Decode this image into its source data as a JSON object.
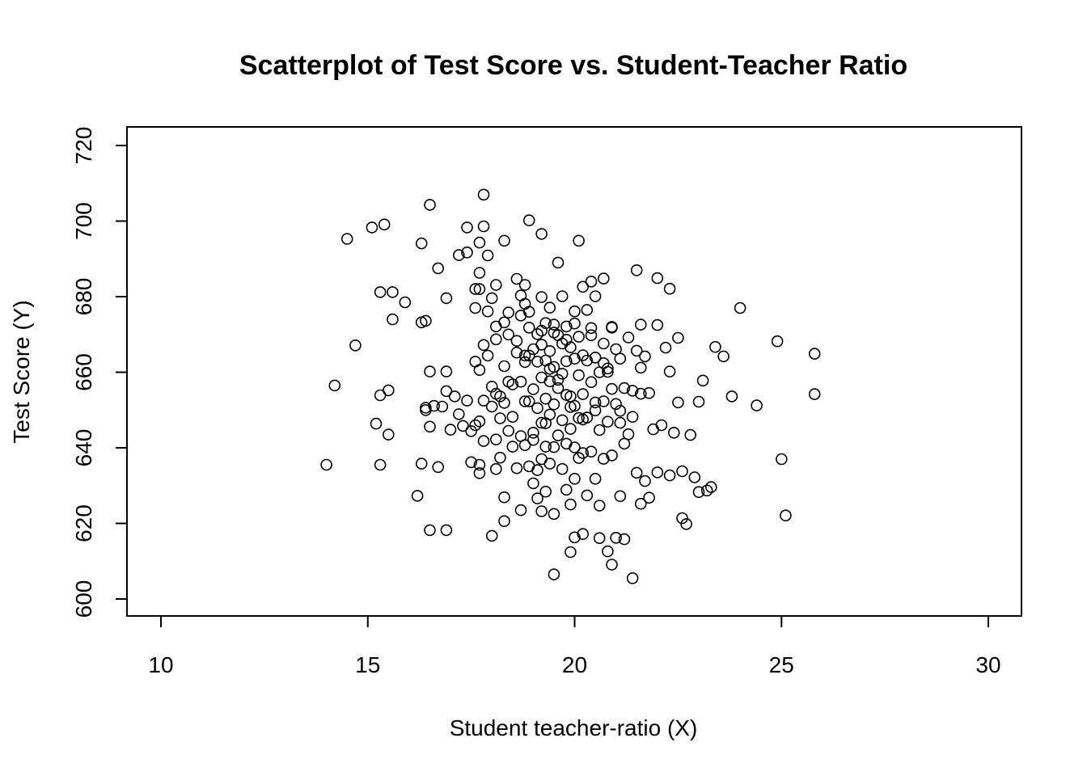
{
  "chart_data": {
    "type": "scatter",
    "title": "Scatterplot of Test Score vs. Student-Teacher Ratio",
    "xlabel": "Student teacher-ratio (X)",
    "ylabel": "Test Score (Y)",
    "xlim": [
      10,
      30
    ],
    "ylim": [
      600,
      720
    ],
    "xticks": [
      10,
      15,
      20,
      25,
      30
    ],
    "yticks": [
      600,
      620,
      640,
      660,
      680,
      700,
      720
    ],
    "xtick_labels": [
      "10",
      "15",
      "20",
      "25",
      "30"
    ],
    "ytick_labels": [
      "600",
      "620",
      "640",
      "660",
      "680",
      "700",
      "720"
    ],
    "grid": false,
    "marker": "open-circle",
    "color": "#000000",
    "points": [
      [
        14.0,
        635.5
      ],
      [
        14.2,
        656.5
      ],
      [
        14.5,
        695.3
      ],
      [
        14.7,
        667.1
      ],
      [
        15.1,
        698.3
      ],
      [
        15.2,
        646.4
      ],
      [
        15.3,
        653.9
      ],
      [
        15.3,
        681.2
      ],
      [
        15.3,
        635.5
      ],
      [
        15.4,
        699.1
      ],
      [
        15.5,
        643.5
      ],
      [
        15.5,
        655.2
      ],
      [
        15.6,
        681.2
      ],
      [
        15.6,
        674.0
      ],
      [
        15.9,
        678.5
      ],
      [
        16.2,
        627.3
      ],
      [
        16.3,
        694.1
      ],
      [
        16.3,
        673.2
      ],
      [
        16.3,
        635.8
      ],
      [
        16.4,
        673.6
      ],
      [
        16.4,
        650.6
      ],
      [
        16.4,
        650.0
      ],
      [
        16.5,
        704.3
      ],
      [
        16.5,
        660.2
      ],
      [
        16.5,
        618.2
      ],
      [
        16.5,
        645.6
      ],
      [
        16.6,
        651.1
      ],
      [
        16.7,
        687.5
      ],
      [
        16.7,
        634.9
      ],
      [
        16.8,
        650.9
      ],
      [
        16.9,
        679.6
      ],
      [
        16.9,
        660.2
      ],
      [
        16.9,
        655.0
      ],
      [
        16.9,
        618.2
      ],
      [
        17.0,
        644.8
      ],
      [
        17.1,
        653.6
      ],
      [
        17.2,
        691.0
      ],
      [
        17.2,
        648.9
      ],
      [
        17.3,
        645.8
      ],
      [
        17.4,
        698.3
      ],
      [
        17.4,
        691.7
      ],
      [
        17.4,
        652.5
      ],
      [
        17.5,
        644.4
      ],
      [
        17.5,
        636.2
      ],
      [
        17.6,
        646.0
      ],
      [
        17.6,
        682.0
      ],
      [
        17.6,
        677.0
      ],
      [
        17.6,
        662.8
      ],
      [
        17.7,
        694.3
      ],
      [
        17.7,
        686.3
      ],
      [
        17.7,
        682.0
      ],
      [
        17.7,
        660.6
      ],
      [
        17.7,
        647.0
      ],
      [
        17.7,
        633.3
      ],
      [
        17.7,
        635.5
      ],
      [
        17.8,
        707.0
      ],
      [
        17.8,
        698.6
      ],
      [
        17.8,
        667.2
      ],
      [
        17.8,
        652.5
      ],
      [
        17.8,
        641.8
      ],
      [
        17.9,
        690.9
      ],
      [
        17.9,
        676.1
      ],
      [
        17.9,
        664.4
      ],
      [
        18.0,
        679.6
      ],
      [
        18.0,
        656.2
      ],
      [
        18.0,
        616.7
      ],
      [
        18.0,
        650.9
      ],
      [
        18.1,
        683.1
      ],
      [
        18.1,
        672.1
      ],
      [
        18.1,
        668.7
      ],
      [
        18.1,
        654.3
      ],
      [
        18.1,
        642.2
      ],
      [
        18.1,
        634.4
      ],
      [
        18.2,
        653.6
      ],
      [
        18.2,
        647.8
      ],
      [
        18.2,
        637.4
      ],
      [
        18.3,
        694.8
      ],
      [
        18.3,
        673.2
      ],
      [
        18.3,
        661.6
      ],
      [
        18.3,
        651.9
      ],
      [
        18.3,
        626.9
      ],
      [
        18.3,
        620.6
      ],
      [
        18.4,
        675.8
      ],
      [
        18.4,
        670.0
      ],
      [
        18.4,
        657.5
      ],
      [
        18.4,
        644.5
      ],
      [
        18.5,
        640.3
      ],
      [
        18.5,
        656.8
      ],
      [
        18.6,
        684.7
      ],
      [
        18.6,
        668.3
      ],
      [
        18.6,
        665.2
      ],
      [
        18.6,
        634.6
      ],
      [
        18.7,
        680.3
      ],
      [
        18.7,
        675.0
      ],
      [
        18.7,
        657.5
      ],
      [
        18.7,
        643.1
      ],
      [
        18.7,
        623.5
      ],
      [
        18.8,
        683.1
      ],
      [
        18.8,
        678.1
      ],
      [
        18.8,
        662.7
      ],
      [
        18.8,
        664.4
      ],
      [
        18.8,
        652.3
      ],
      [
        18.8,
        640.7
      ],
      [
        18.9,
        700.2
      ],
      [
        18.9,
        676.0
      ],
      [
        18.9,
        664.4
      ],
      [
        18.9,
        652.3
      ],
      [
        18.9,
        635.1
      ],
      [
        19.0,
        666.1
      ],
      [
        19.0,
        655.5
      ],
      [
        19.0,
        642.1
      ],
      [
        19.0,
        630.6
      ],
      [
        19.1,
        670.1
      ],
      [
        19.1,
        662.8
      ],
      [
        19.1,
        650.5
      ],
      [
        19.1,
        634.1
      ],
      [
        19.1,
        626.6
      ],
      [
        19.2,
        696.6
      ],
      [
        19.2,
        679.9
      ],
      [
        19.2,
        671.0
      ],
      [
        19.2,
        658.6
      ],
      [
        19.2,
        646.6
      ],
      [
        19.2,
        637.0
      ],
      [
        19.2,
        623.2
      ],
      [
        19.3,
        673.0
      ],
      [
        19.3,
        663.1
      ],
      [
        19.3,
        653.0
      ],
      [
        19.3,
        640.3
      ],
      [
        19.3,
        628.4
      ],
      [
        19.4,
        677.1
      ],
      [
        19.4,
        665.6
      ],
      [
        19.4,
        660.9
      ],
      [
        19.4,
        648.8
      ],
      [
        19.4,
        635.8
      ],
      [
        19.5,
        606.5
      ],
      [
        19.5,
        672.6
      ],
      [
        19.5,
        661.4
      ],
      [
        19.5,
        651.5
      ],
      [
        19.5,
        640.2
      ],
      [
        19.5,
        622.5
      ],
      [
        19.6,
        689.0
      ],
      [
        19.6,
        669.8
      ],
      [
        19.6,
        655.8
      ],
      [
        19.6,
        643.3
      ],
      [
        19.7,
        680.1
      ],
      [
        19.7,
        667.6
      ],
      [
        19.7,
        659.6
      ],
      [
        19.7,
        647.3
      ],
      [
        19.7,
        634.4
      ],
      [
        19.8,
        672.1
      ],
      [
        19.8,
        662.9
      ],
      [
        19.8,
        654.0
      ],
      [
        19.8,
        641.1
      ],
      [
        19.8,
        628.9
      ],
      [
        19.9,
        666.6
      ],
      [
        19.9,
        653.6
      ],
      [
        19.9,
        645.0
      ],
      [
        19.9,
        625.0
      ],
      [
        19.9,
        612.4
      ],
      [
        20.0,
        676.1
      ],
      [
        20.0,
        663.6
      ],
      [
        20.0,
        651.1
      ],
      [
        20.0,
        640.1
      ],
      [
        20.0,
        631.8
      ],
      [
        20.0,
        616.3
      ],
      [
        20.1,
        694.8
      ],
      [
        20.1,
        669.4
      ],
      [
        20.1,
        659.2
      ],
      [
        20.1,
        647.9
      ],
      [
        20.1,
        637.3
      ],
      [
        20.2,
        682.6
      ],
      [
        20.2,
        664.5
      ],
      [
        20.2,
        654.2
      ],
      [
        20.2,
        638.6
      ],
      [
        20.2,
        617.2
      ],
      [
        20.3,
        676.5
      ],
      [
        20.3,
        663.1
      ],
      [
        20.3,
        648.0
      ],
      [
        20.3,
        627.4
      ],
      [
        20.4,
        684.0
      ],
      [
        20.4,
        671.7
      ],
      [
        20.4,
        657.4
      ],
      [
        20.4,
        639.0
      ],
      [
        20.5,
        680.1
      ],
      [
        20.5,
        663.9
      ],
      [
        20.5,
        649.9
      ],
      [
        20.5,
        631.8
      ],
      [
        20.6,
        660.0
      ],
      [
        20.6,
        644.7
      ],
      [
        20.6,
        624.7
      ],
      [
        20.6,
        616.1
      ],
      [
        20.7,
        684.8
      ],
      [
        20.7,
        667.6
      ],
      [
        20.7,
        652.3
      ],
      [
        20.7,
        637.1
      ],
      [
        20.8,
        612.6
      ],
      [
        20.8,
        660.1
      ],
      [
        20.8,
        646.9
      ],
      [
        20.9,
        671.8
      ],
      [
        20.9,
        655.6
      ],
      [
        20.9,
        638.0
      ],
      [
        20.9,
        609.1
      ],
      [
        21.0,
        666.1
      ],
      [
        21.0,
        651.6
      ],
      [
        21.0,
        616.2
      ],
      [
        21.1,
        663.6
      ],
      [
        21.1,
        646.6
      ],
      [
        21.1,
        627.2
      ],
      [
        21.2,
        655.8
      ],
      [
        21.2,
        641.1
      ],
      [
        21.2,
        615.8
      ],
      [
        21.3,
        669.2
      ],
      [
        21.3,
        643.6
      ],
      [
        21.4,
        648.2
      ],
      [
        21.4,
        605.5
      ],
      [
        21.5,
        687.0
      ],
      [
        21.5,
        665.7
      ],
      [
        21.5,
        633.4
      ],
      [
        21.6,
        672.6
      ],
      [
        21.6,
        654.3
      ],
      [
        21.6,
        625.2
      ],
      [
        21.7,
        664.2
      ],
      [
        21.7,
        631.2
      ],
      [
        21.8,
        654.5
      ],
      [
        21.8,
        626.8
      ],
      [
        21.9,
        644.9
      ],
      [
        22.0,
        684.9
      ],
      [
        22.0,
        672.5
      ],
      [
        22.0,
        633.5
      ],
      [
        22.1,
        646.0
      ],
      [
        22.2,
        666.5
      ],
      [
        22.3,
        682.1
      ],
      [
        22.3,
        660.2
      ],
      [
        22.3,
        632.7
      ],
      [
        22.4,
        644.0
      ],
      [
        22.5,
        669.1
      ],
      [
        22.5,
        652.0
      ],
      [
        22.6,
        633.8
      ],
      [
        22.6,
        621.4
      ],
      [
        22.7,
        619.8
      ],
      [
        22.8,
        643.4
      ],
      [
        22.9,
        632.2
      ],
      [
        23.0,
        628.3
      ],
      [
        23.0,
        652.2
      ],
      [
        23.1,
        657.8
      ],
      [
        23.2,
        628.7
      ],
      [
        23.3,
        629.6
      ],
      [
        23.4,
        666.7
      ],
      [
        23.6,
        664.2
      ],
      [
        23.8,
        653.6
      ],
      [
        24.0,
        677.0
      ],
      [
        24.4,
        651.2
      ],
      [
        24.9,
        668.2
      ],
      [
        25.0,
        637.0
      ],
      [
        25.1,
        622.1
      ],
      [
        25.8,
        664.9
      ],
      [
        25.8,
        654.2
      ],
      [
        19.0,
        644.0
      ],
      [
        19.3,
        646.5
      ],
      [
        19.6,
        658.0
      ],
      [
        19.9,
        650.8
      ],
      [
        20.2,
        647.5
      ],
      [
        20.5,
        652.0
      ],
      [
        20.8,
        661.0
      ],
      [
        21.1,
        649.8
      ],
      [
        21.4,
        655.1
      ],
      [
        18.5,
        648.2
      ],
      [
        19.2,
        667.3
      ],
      [
        19.8,
        668.6
      ],
      [
        20.4,
        669.8
      ],
      [
        20.9,
        672.0
      ],
      [
        19.5,
        670.5
      ],
      [
        20.0,
        672.9
      ],
      [
        18.9,
        671.8
      ],
      [
        21.6,
        661.2
      ],
      [
        20.7,
        662.4
      ],
      [
        19.4,
        657.6
      ]
    ]
  }
}
